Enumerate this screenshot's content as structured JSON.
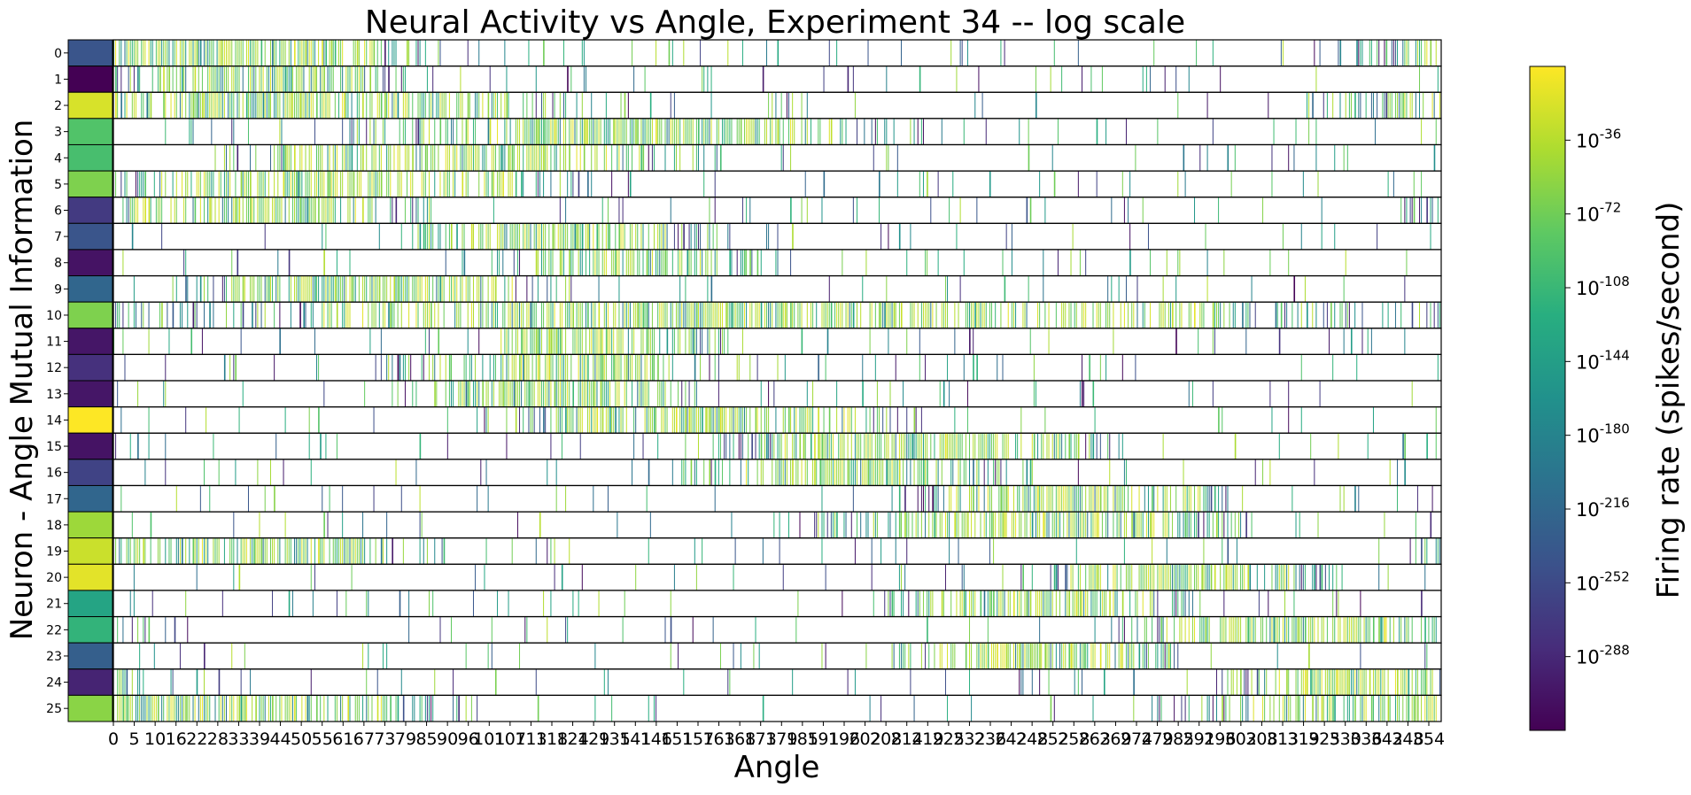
{
  "chart_data": {
    "type": "heatmap",
    "title": "Neural Activity vs Angle, Experiment 34 -- log scale",
    "xlabel": "Angle",
    "ylabel": "Neuron - Angle Mutual Information",
    "colorbar_label": "Firing rate (spikes/second)",
    "colormap": [
      "#440154",
      "#472d7b",
      "#3b528b",
      "#2c728e",
      "#21918c",
      "#28ae80",
      "#5ec962",
      "#addc30",
      "#fde725"
    ],
    "scale": "log",
    "neurons": [
      "0",
      "1",
      "2",
      "3",
      "4",
      "5",
      "6",
      "7",
      "8",
      "9",
      "10",
      "11",
      "12",
      "13",
      "14",
      "15",
      "16",
      "17",
      "18",
      "19",
      "20",
      "21",
      "22",
      "23",
      "24",
      "25"
    ],
    "mutual_information": [
      0.26,
      0.0,
      0.94,
      0.72,
      0.7,
      0.8,
      0.17,
      0.26,
      0.05,
      0.33,
      0.8,
      0.06,
      0.14,
      0.06,
      1.0,
      0.05,
      0.2,
      0.33,
      0.85,
      0.92,
      0.96,
      0.58,
      0.65,
      0.3,
      0.1,
      0.82
    ],
    "x_ticks": [
      "0",
      "5",
      "10",
      "16",
      "22",
      "28",
      "33",
      "39",
      "44",
      "50",
      "55",
      "61",
      "67",
      "73",
      "79",
      "85",
      "90",
      "96",
      "101",
      "107",
      "113",
      "118",
      "124",
      "129",
      "135",
      "141",
      "146",
      "151",
      "157",
      "163",
      "168",
      "173",
      "179",
      "185",
      "191",
      "196",
      "202",
      "208",
      "214",
      "219",
      "225",
      "232",
      "236",
      "242",
      "248",
      "252",
      "258",
      "263",
      "269",
      "274",
      "279",
      "285",
      "291",
      "296",
      "302",
      "308",
      "313",
      "319",
      "325",
      "330",
      "336",
      "342",
      "348",
      "354"
    ],
    "x_range": [
      0,
      360
    ],
    "tuning_peaks_deg": [
      30,
      40,
      50,
      140,
      95,
      60,
      40,
      120,
      140,
      70,
      180,
      130,
      120,
      120,
      160,
      220,
      200,
      260,
      250,
      40,
      290,
      250,
      320,
      250,
      335,
      10
    ],
    "tuning_widths_deg": [
      60,
      40,
      90,
      80,
      70,
      70,
      50,
      45,
      40,
      55,
      180,
      40,
      50,
      45,
      60,
      60,
      50,
      50,
      60,
      50,
      45,
      45,
      50,
      40,
      35,
      90
    ],
    "colorbar_ticks": [
      "10^-36",
      "10^-72",
      "10^-108",
      "10^-144",
      "10^-180",
      "10^-216",
      "10^-252",
      "10^-288"
    ],
    "colorbar_tick_exponents": [
      -36,
      -72,
      -108,
      -144,
      -180,
      -216,
      -252,
      -288
    ],
    "colorbar_range_exponent": [
      -324,
      0
    ]
  }
}
